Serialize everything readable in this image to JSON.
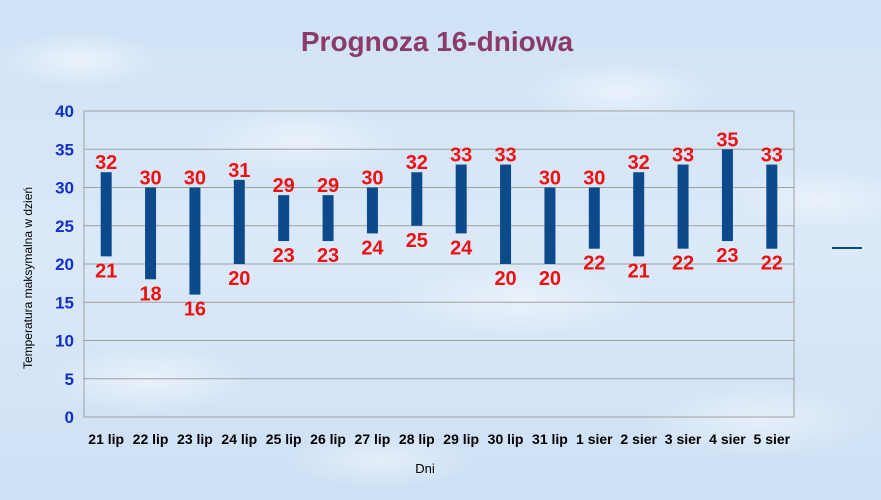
{
  "chart_data": {
    "type": "bar",
    "subtype": "floating-range",
    "title": "Prognoza 16-dniowa",
    "xlabel": "Dni",
    "ylabel": "Temperatura maksymalna w dzień",
    "ylim": [
      0,
      40
    ],
    "yticks": [
      0,
      5,
      10,
      15,
      20,
      25,
      30,
      35,
      40
    ],
    "grid": true,
    "legend_position": "right",
    "categories": [
      "21 lip",
      "22 lip",
      "23 lip",
      "24 lip",
      "25 lip",
      "26 lip",
      "27 lip",
      "28 lip",
      "29 lip",
      "30 lip",
      "31 lip",
      "1 sier",
      "2 sier",
      "3 sier",
      "4 sier",
      "5 sier"
    ],
    "series": [
      {
        "role": "low",
        "values": [
          21,
          18,
          16,
          20,
          23,
          23,
          24,
          25,
          24,
          20,
          20,
          22,
          21,
          22,
          23,
          22
        ]
      },
      {
        "role": "high",
        "values": [
          32,
          30,
          30,
          31,
          29,
          29,
          30,
          32,
          33,
          33,
          30,
          30,
          32,
          33,
          35,
          33
        ]
      }
    ],
    "colors": {
      "bar": "#0d4a8c",
      "label": "#ee1111",
      "title": "#8b3a6b",
      "ytick": "#1030c8",
      "grid": "#a0a0a0"
    }
  }
}
